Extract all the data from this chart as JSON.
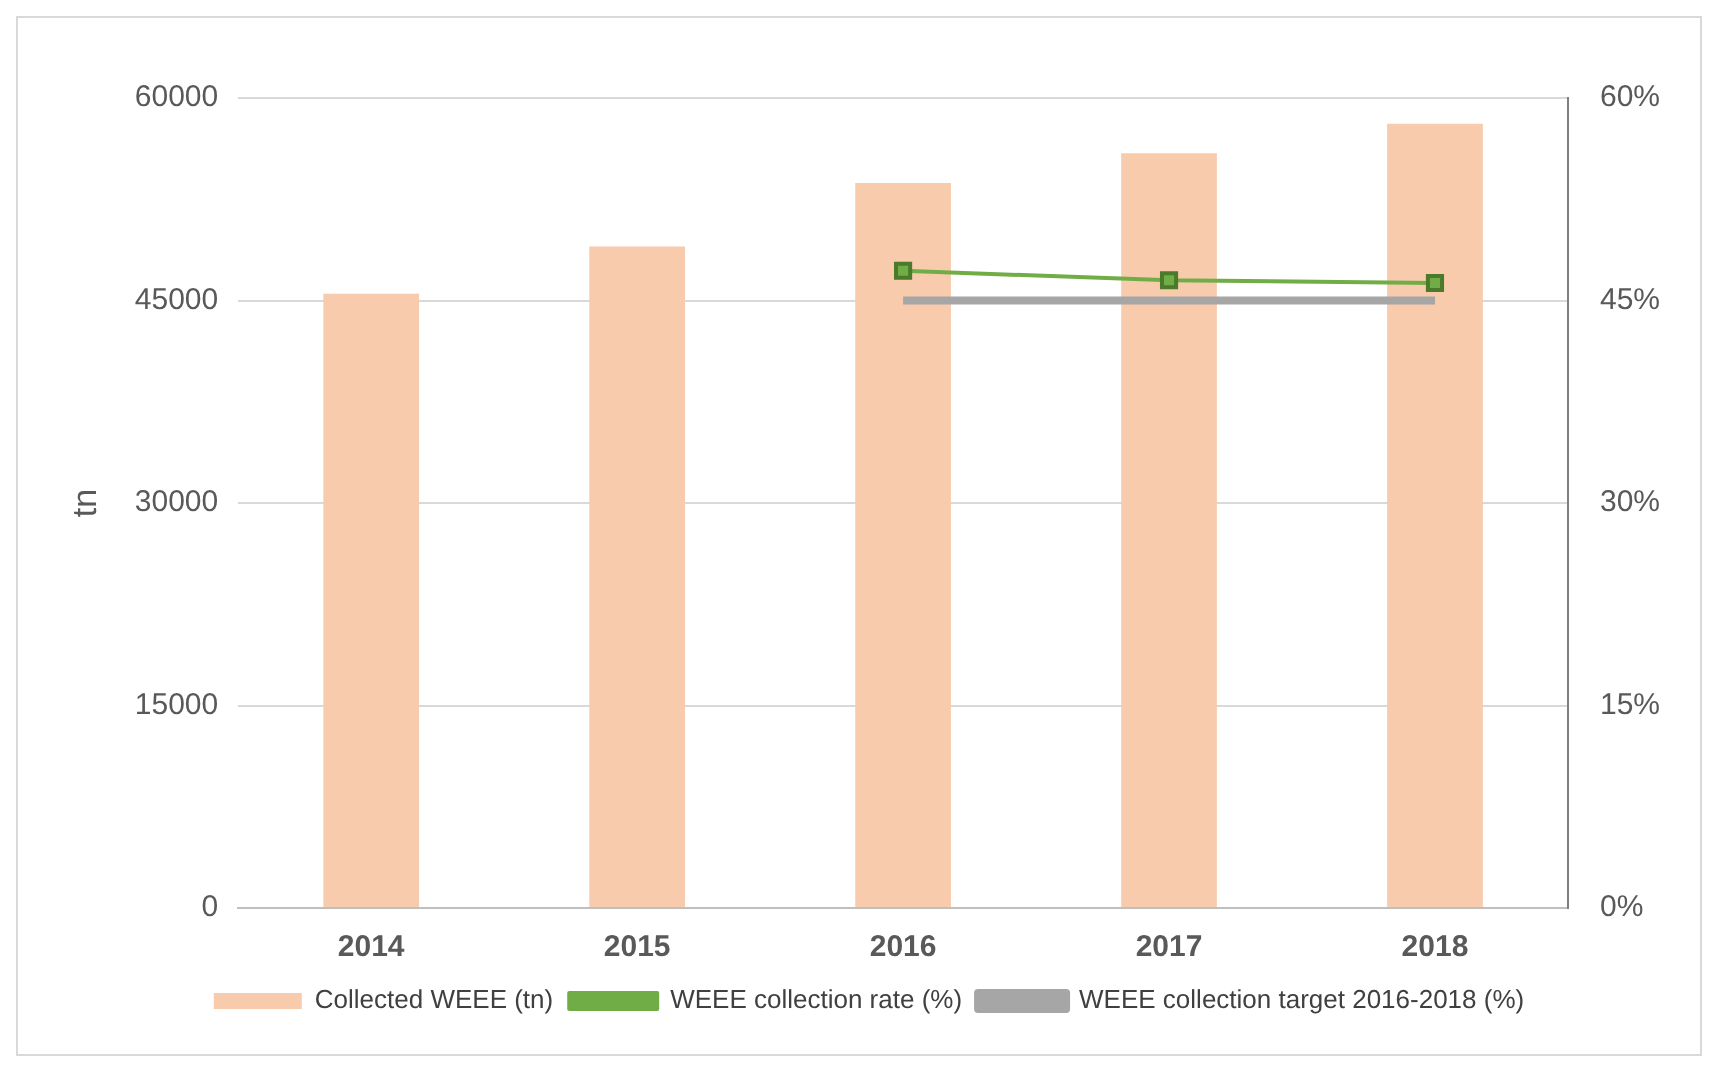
{
  "chart_data": {
    "type": "bar",
    "categories": [
      "2014",
      "2015",
      "2016",
      "2017",
      "2018"
    ],
    "series": [
      {
        "name": "Collected WEEE (tn)",
        "color": "#f8cbad",
        "values": [
          45500,
          49000,
          53700,
          55900,
          58100
        ]
      },
      {
        "name": "WEEE collection rate (%)",
        "type": "line",
        "axis": "y2",
        "color": "#70ad47",
        "marker": "square",
        "values": [
          null,
          null,
          47.2,
          46.5,
          46.3
        ]
      },
      {
        "name": "WEEE collection target 2016-2018 (%)",
        "type": "line",
        "axis": "y2",
        "color": "#a6a6a6",
        "marker": "none",
        "values": [
          null,
          null,
          45,
          45,
          45
        ]
      }
    ],
    "ylabel": "tn",
    "ylim": [
      0,
      60000
    ],
    "yticks": [
      0,
      15000,
      30000,
      45000,
      60000
    ],
    "y2lim": [
      0,
      60
    ],
    "y2ticks": [
      {
        "value": 0,
        "label": "0%"
      },
      {
        "value": 15,
        "label": "15%"
      },
      {
        "value": 30,
        "label": "30%"
      },
      {
        "value": 45,
        "label": "45%"
      },
      {
        "value": 60,
        "label": "60%"
      }
    ],
    "grid": "y",
    "legend": "bottom"
  }
}
